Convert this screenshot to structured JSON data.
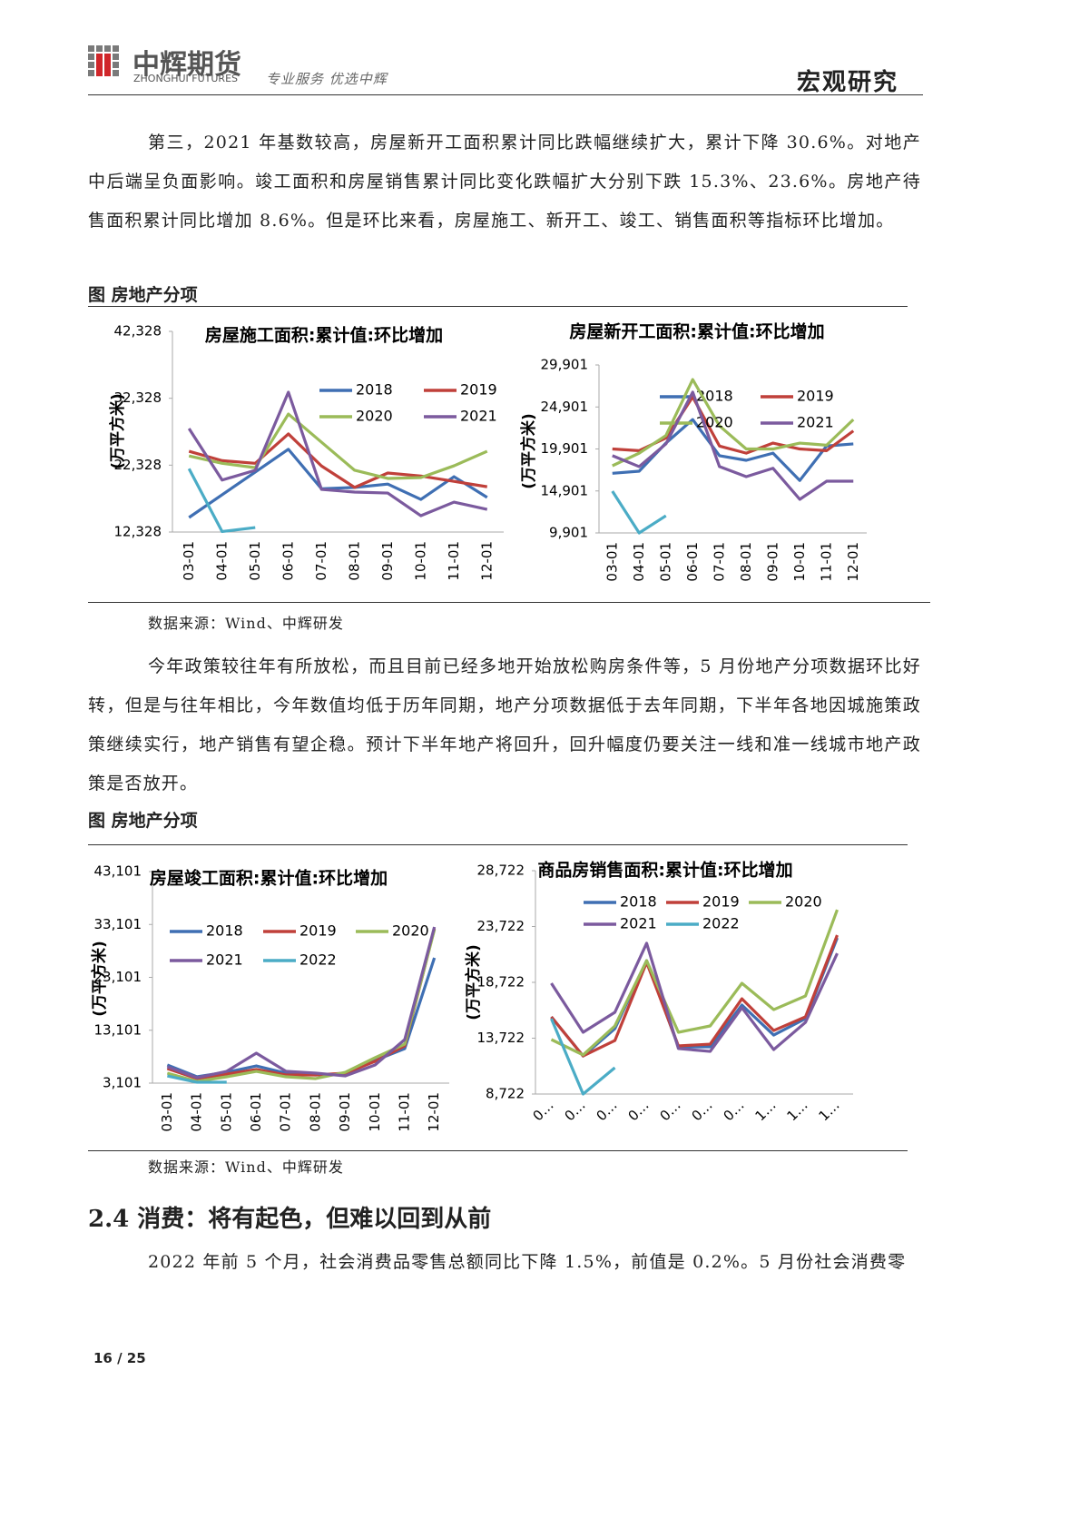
{
  "header": {
    "logo_cn": "中辉期货",
    "logo_en": "ZHONGHUI FUTURES",
    "slogan": "专业服务 优选中辉",
    "section": "宏观研究"
  },
  "paragraphs": [
    "第三，2021 年基数较高，房屋新开工面积累计同比跌幅继续扩大，累计下降 30.6%。对地产中后端呈负面影响。竣工面积和房屋销售累计同比变化跌幅扩大分别下跌 15.3%、23.6%。房地产待售面积累计同比增加 8.6%。但是环比来看，房屋施工、新开工、竣工、销售面积等指标环比增加。",
    "今年政策较往年有所放松，而且目前已经多地开始放松购房条件等，5 月份地产分项数据环比好转，但是与往年相比，今年数值均低于历年同期，地产分项数据低于去年同期，下半年各地因城施策政策继续实行，地产销售有望企稳。预计下半年地产将回升，回升幅度仍要关注一线和准一线城市地产政策是否放开。"
  ],
  "figures": [
    {
      "caption": "图 房地产分项",
      "source": "数据来源：Wind、中辉研发",
      "charts": [
        {
          "type": "line",
          "title": "房屋施工面积:累计值:环比增加",
          "y_label": "(万平方米)",
          "categories": [
            "03-01",
            "04-01",
            "05-01",
            "06-01",
            "07-01",
            "08-01",
            "09-01",
            "10-01",
            "11-01",
            "12-01"
          ],
          "ylim": [
            12328,
            42328
          ],
          "yticks": [
            {
              "value": 12328,
              "label": "12,328"
            },
            {
              "value": 22328,
              "label": "22,328"
            },
            {
              "value": 32328,
              "label": "32,328"
            },
            {
              "value": 42328,
              "label": "42,328"
            }
          ],
          "series": [
            {
              "name": "2018",
              "color": "#3f6fb3",
              "values": [
                14500,
                17900,
                21300,
                24700,
                18800,
                19000,
                19500,
                17200,
                20600,
                17500
              ]
            },
            {
              "name": "2019",
              "color": "#c0403a",
              "values": [
                24400,
                23000,
                22600,
                27000,
                22200,
                19000,
                21150,
                20700,
                19900,
                19100
              ]
            },
            {
              "name": "2020",
              "color": "#9bbb59",
              "values": [
                23700,
                22600,
                21950,
                29970,
                25760,
                21560,
                20340,
                20470,
                22230,
                24400
              ]
            },
            {
              "name": "2021",
              "color": "#7b5a9e",
              "values": [
                27800,
                20100,
                21560,
                33230,
                18700,
                18300,
                18160,
                14770,
                16800,
                15720
              ]
            },
            {
              "color": "#4bacc6",
              "values": [
                21800,
                12400,
                13000,
                null,
                null,
                null,
                null,
                null,
                null,
                null
              ]
            }
          ]
        },
        {
          "type": "line",
          "title": "房屋新开工面积:累计值:环比增加",
          "y_label": "(万平方米)",
          "categories": [
            "03-01",
            "04-01",
            "05-01",
            "06-01",
            "07-01",
            "08-01",
            "09-01",
            "10-01",
            "11-01",
            "12-01"
          ],
          "ylim": [
            9901,
            29901
          ],
          "yticks": [
            {
              "value": 9901,
              "label": "9,901"
            },
            {
              "value": 14901,
              "label": "14,901"
            },
            {
              "value": 19901,
              "label": "19,901"
            },
            {
              "value": 24901,
              "label": "24,901"
            },
            {
              "value": 29901,
              "label": "29,901"
            }
          ],
          "series": [
            {
              "name": "2018",
              "color": "#3f6fb3",
              "values": [
                17000,
                17250,
                20600,
                23400,
                19100,
                18550,
                19400,
                16150,
                20250,
                20500
              ]
            },
            {
              "name": "2019",
              "color": "#c0403a",
              "values": [
                19900,
                19700,
                21200,
                26100,
                20250,
                19400,
                20600,
                19900,
                19700,
                22050
              ]
            },
            {
              "name": "2020",
              "color": "#9bbb59",
              "values": [
                17900,
                19400,
                21500,
                28170,
                22650,
                19900,
                19900,
                20600,
                20350,
                23400
              ]
            },
            {
              "name": "2021",
              "color": "#7b5a9e",
              "values": [
                19100,
                17800,
                20500,
                26660,
                17800,
                16600,
                17600,
                13900,
                16060,
                16060
              ]
            },
            {
              "color": "#4bacc6",
              "values": [
                14870,
                9900,
                11950,
                null,
                null,
                null,
                null,
                null,
                null,
                null
              ]
            }
          ]
        }
      ]
    },
    {
      "caption": "图 房地产分项",
      "source": "数据来源：Wind、中辉研发",
      "charts": [
        {
          "type": "line",
          "title": "房屋竣工面积:累计值:环比增加",
          "y_label": "(万平方米)",
          "categories": [
            "03-01",
            "04-01",
            "05-01",
            "06-01",
            "07-01",
            "08-01",
            "09-01",
            "10-01",
            "11-01",
            "12-01"
          ],
          "ylim": [
            3101,
            43101
          ],
          "yticks": [
            {
              "value": 3101,
              "label": "3,101"
            },
            {
              "value": 13101,
              "label": "13,101"
            },
            {
              "value": 23101,
              "label": "23,101"
            },
            {
              "value": 33101,
              "label": "33,101"
            },
            {
              "value": 43101,
              "label": "43,101"
            }
          ],
          "series": [
            {
              "name": "2018",
              "color": "#3f6fb3",
              "values": [
                6530,
                4300,
                5160,
                6360,
                4990,
                4650,
                4820,
                7400,
                9630,
                26800
              ]
            },
            {
              "name": "2019",
              "color": "#c0403a",
              "values": [
                5850,
                3960,
                4820,
                5680,
                4650,
                4650,
                4990,
                7220,
                10150,
                32290
              ]
            },
            {
              "name": "2020",
              "color": "#9bbb59",
              "values": [
                4990,
                3440,
                4300,
                5330,
                4300,
                3960,
                5160,
                7910,
                10480,
                32120
              ]
            },
            {
              "name": "2021",
              "color": "#7b5a9e",
              "values": [
                6190,
                4130,
                5330,
                8770,
                5330,
                4990,
                4470,
                6530,
                11340,
                32630
              ]
            },
            {
              "name": "2022",
              "color": "#4bacc6",
              "values": [
                4470,
                3270,
                3270,
                null,
                null,
                null,
                null,
                null,
                null,
                null
              ]
            }
          ]
        },
        {
          "type": "line",
          "title": "商品房销售面积:累计值:环比增加",
          "y_label": "(万平方米)",
          "categories": [
            "0…",
            "0…",
            "0…",
            "0…",
            "0…",
            "0…",
            "0…",
            "1…",
            "1…",
            "1…"
          ],
          "ylim": [
            8722,
            28722
          ],
          "yticks": [
            {
              "value": 8722,
              "label": "8,722"
            },
            {
              "value": 13722,
              "label": "13,722"
            },
            {
              "value": 18722,
              "label": "18,722"
            },
            {
              "value": 23722,
              "label": "23,722"
            },
            {
              "value": 28722,
              "label": "28,722"
            }
          ],
          "series": [
            {
              "name": "2018",
              "color": "#3f6fb3",
              "values": [
                15630,
                12130,
                14570,
                20670,
                12950,
                12950,
                16690,
                14000,
                15470,
                22700
              ]
            },
            {
              "name": "2019",
              "color": "#c0403a",
              "values": [
                15630,
                12130,
                13510,
                20510,
                13030,
                13190,
                17250,
                14410,
                15630,
                22950
              ]
            },
            {
              "name": "2020",
              "color": "#9bbb59",
              "values": [
                13600,
                12220,
                14820,
                20670,
                14250,
                14820,
                18640,
                16280,
                17500,
                25220
              ]
            },
            {
              "name": "2021",
              "color": "#7b5a9e",
              "values": [
                18640,
                14250,
                16040,
                22220,
                12790,
                12540,
                16450,
                12700,
                15140,
                21320
              ]
            },
            {
              "name": "2022",
              "color": "#4bacc6",
              "values": [
                15470,
                8720,
                11080,
                null,
                null,
                null,
                null,
                null,
                null,
                null
              ]
            }
          ]
        }
      ]
    }
  ],
  "heading": "2.4 消费：将有起色，但难以回到从前",
  "last_paragraph": "2022 年前 5 个月，社会消费品零售总额同比下降 1.5%，前值是 0.2%。5 月份社会消费零",
  "footer": {
    "page": "16 / 25"
  }
}
